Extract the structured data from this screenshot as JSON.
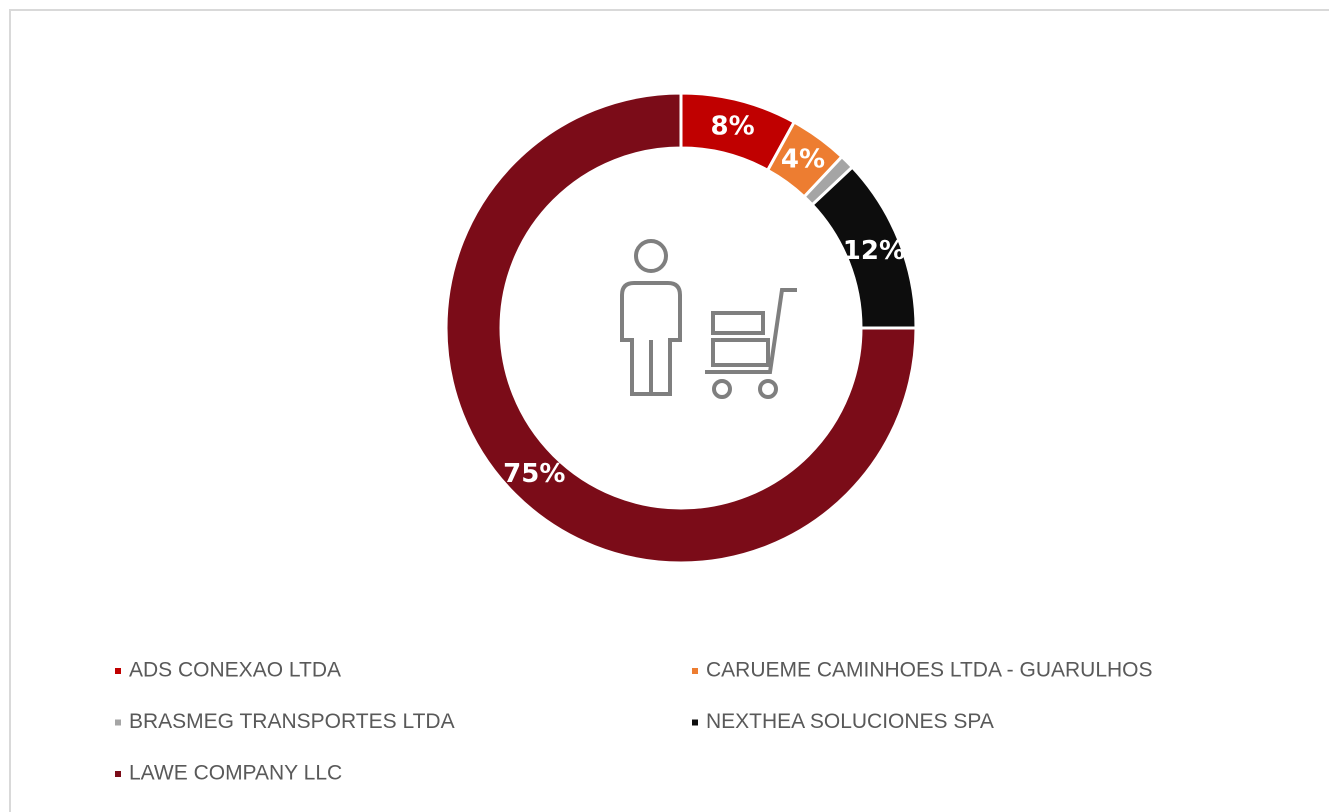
{
  "chart_data": {
    "type": "donut",
    "categories": [
      "ADS CONEXAO LTDA",
      "CARUEME CAMINHOES LTDA - GUARULHOS",
      "BRASMEG TRANSPORTES LTDA",
      "NEXTHEA SOLUCIONES SPA",
      "LAWE COMPANY LLC"
    ],
    "values": [
      8,
      4,
      1,
      12,
      75
    ],
    "value_labels": [
      "8%",
      "4%",
      null,
      "12%",
      "75%"
    ],
    "colors": [
      "#c00000",
      "#ed7d31",
      "#a5a5a5",
      "#0d0d0d",
      "#7b0c18"
    ],
    "legend": "bottom"
  }
}
